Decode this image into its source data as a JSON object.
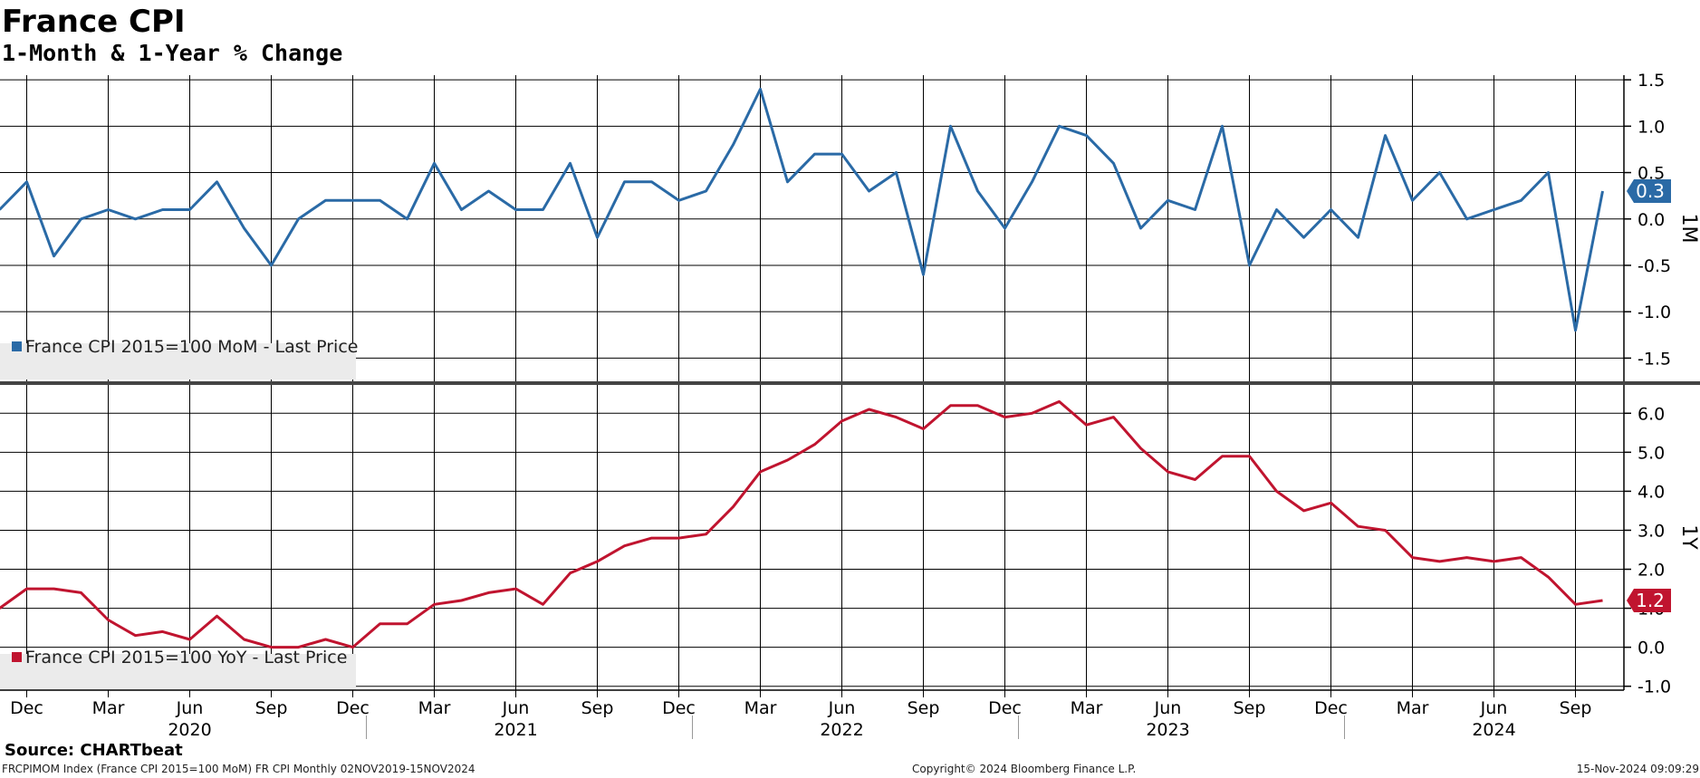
{
  "header": {
    "title": "France CPI",
    "subtitle": "1-Month & 1-Year % Change"
  },
  "footer": {
    "source": "Source: CHARTbeat",
    "ticker_info": "FRCPIMOM Index (France CPI 2015=100 MoM) FR CPI  Monthly 02NOV2019-15NOV2024",
    "copyright": "Copyright© 2024 Bloomberg Finance L.P.",
    "timestamp": "15-Nov-2024 09:09:29"
  },
  "colors": {
    "mom": "#2a6aa6",
    "yoy": "#c0142f",
    "grid": "#000000",
    "legend_bg": "#ebebeb"
  },
  "chart_data": [
    {
      "type": "line",
      "panel": "top",
      "axis_label": "1M",
      "legend": "France CPI 2015=100 MoM - Last Price",
      "last_value_label": "0.3",
      "ylim": [
        -1.75,
        1.55
      ],
      "yticks": [
        1.5,
        1.0,
        0.5,
        0.0,
        -0.5,
        -1.0,
        -1.5
      ],
      "ytick_labels": [
        "1.5",
        "1.0",
        "0.5",
        "0.0",
        "-0.5",
        "-1.0",
        "-1.5"
      ],
      "x": [
        "2019-11",
        "2019-12",
        "2020-01",
        "2020-02",
        "2020-03",
        "2020-04",
        "2020-05",
        "2020-06",
        "2020-07",
        "2020-08",
        "2020-09",
        "2020-10",
        "2020-11",
        "2020-12",
        "2021-01",
        "2021-02",
        "2021-03",
        "2021-04",
        "2021-05",
        "2021-06",
        "2021-07",
        "2021-08",
        "2021-09",
        "2021-10",
        "2021-11",
        "2021-12",
        "2022-01",
        "2022-02",
        "2022-03",
        "2022-04",
        "2022-05",
        "2022-06",
        "2022-07",
        "2022-08",
        "2022-09",
        "2022-10",
        "2022-11",
        "2022-12",
        "2023-01",
        "2023-02",
        "2023-03",
        "2023-04",
        "2023-05",
        "2023-06",
        "2023-07",
        "2023-08",
        "2023-09",
        "2023-10",
        "2023-11",
        "2023-12",
        "2024-01",
        "2024-02",
        "2024-03",
        "2024-04",
        "2024-05",
        "2024-06",
        "2024-07",
        "2024-08",
        "2024-09",
        "2024-10"
      ],
      "series": [
        {
          "values": [
            0.1,
            0.4,
            -0.4,
            0.0,
            0.1,
            0.0,
            0.1,
            0.1,
            0.4,
            -0.1,
            -0.5,
            0.0,
            0.2,
            0.2,
            0.2,
            0.0,
            0.6,
            0.1,
            0.3,
            0.1,
            0.1,
            0.6,
            -0.2,
            0.4,
            0.4,
            0.2,
            0.3,
            0.8,
            1.4,
            0.4,
            0.7,
            0.7,
            0.3,
            0.5,
            -0.6,
            1.0,
            0.3,
            -0.1,
            0.4,
            1.0,
            0.9,
            0.6,
            -0.1,
            0.2,
            0.1,
            1.0,
            -0.5,
            0.1,
            -0.2,
            0.1,
            -0.2,
            0.9,
            0.2,
            0.5,
            0.0,
            0.1,
            0.2,
            0.5,
            -1.2,
            0.3
          ]
        }
      ]
    },
    {
      "type": "line",
      "panel": "bottom",
      "axis_label": "1Y",
      "legend": "France CPI 2015=100 YoY - Last Price",
      "last_value_label": "1.2",
      "ylim": [
        -1.1,
        6.75
      ],
      "yticks": [
        6.0,
        5.0,
        4.0,
        3.0,
        2.0,
        1.0,
        0.0,
        -1.0
      ],
      "ytick_labels": [
        "6.0",
        "5.0",
        "4.0",
        "3.0",
        "2.0",
        "1.0",
        "0.0",
        "-1.0"
      ],
      "x": [
        "2019-11",
        "2019-12",
        "2020-01",
        "2020-02",
        "2020-03",
        "2020-04",
        "2020-05",
        "2020-06",
        "2020-07",
        "2020-08",
        "2020-09",
        "2020-10",
        "2020-11",
        "2020-12",
        "2021-01",
        "2021-02",
        "2021-03",
        "2021-04",
        "2021-05",
        "2021-06",
        "2021-07",
        "2021-08",
        "2021-09",
        "2021-10",
        "2021-11",
        "2021-12",
        "2022-01",
        "2022-02",
        "2022-03",
        "2022-04",
        "2022-05",
        "2022-06",
        "2022-07",
        "2022-08",
        "2022-09",
        "2022-10",
        "2022-11",
        "2022-12",
        "2023-01",
        "2023-02",
        "2023-03",
        "2023-04",
        "2023-05",
        "2023-06",
        "2023-07",
        "2023-08",
        "2023-09",
        "2023-10",
        "2023-11",
        "2023-12",
        "2024-01",
        "2024-02",
        "2024-03",
        "2024-04",
        "2024-05",
        "2024-06",
        "2024-07",
        "2024-08",
        "2024-09",
        "2024-10"
      ],
      "series": [
        {
          "values": [
            1.0,
            1.5,
            1.5,
            1.4,
            0.7,
            0.3,
            0.4,
            0.2,
            0.8,
            0.2,
            0.0,
            0.0,
            0.2,
            0.0,
            0.6,
            0.6,
            1.1,
            1.2,
            1.4,
            1.5,
            1.1,
            1.9,
            2.2,
            2.6,
            2.8,
            2.8,
            2.9,
            3.6,
            4.5,
            4.8,
            5.2,
            5.8,
            6.1,
            5.9,
            5.6,
            6.2,
            6.2,
            5.9,
            6.0,
            6.3,
            5.7,
            5.9,
            5.1,
            4.5,
            4.3,
            4.9,
            4.9,
            4.0,
            3.5,
            3.7,
            3.1,
            3.0,
            2.3,
            2.2,
            2.3,
            2.2,
            2.3,
            1.8,
            1.1,
            1.2
          ]
        }
      ]
    }
  ],
  "x_axis": {
    "month_ticks": [
      {
        "label": "Dec",
        "date": "2019-12"
      },
      {
        "label": "Mar",
        "date": "2020-03"
      },
      {
        "label": "Jun",
        "date": "2020-06"
      },
      {
        "label": "Sep",
        "date": "2020-09"
      },
      {
        "label": "Dec",
        "date": "2020-12"
      },
      {
        "label": "Mar",
        "date": "2021-03"
      },
      {
        "label": "Jun",
        "date": "2021-06"
      },
      {
        "label": "Sep",
        "date": "2021-09"
      },
      {
        "label": "Dec",
        "date": "2021-12"
      },
      {
        "label": "Mar",
        "date": "2022-03"
      },
      {
        "label": "Jun",
        "date": "2022-06"
      },
      {
        "label": "Sep",
        "date": "2022-09"
      },
      {
        "label": "Dec",
        "date": "2022-12"
      },
      {
        "label": "Mar",
        "date": "2023-03"
      },
      {
        "label": "Jun",
        "date": "2023-06"
      },
      {
        "label": "Sep",
        "date": "2023-09"
      },
      {
        "label": "Dec",
        "date": "2023-12"
      },
      {
        "label": "Mar",
        "date": "2024-03"
      },
      {
        "label": "Jun",
        "date": "2024-06"
      },
      {
        "label": "Sep",
        "date": "2024-09"
      }
    ],
    "years": [
      {
        "label": "2020",
        "date": "2020-06"
      },
      {
        "label": "2021",
        "date": "2021-06"
      },
      {
        "label": "2022",
        "date": "2022-06"
      },
      {
        "label": "2023",
        "date": "2023-06"
      },
      {
        "label": "2024",
        "date": "2024-06"
      }
    ]
  }
}
